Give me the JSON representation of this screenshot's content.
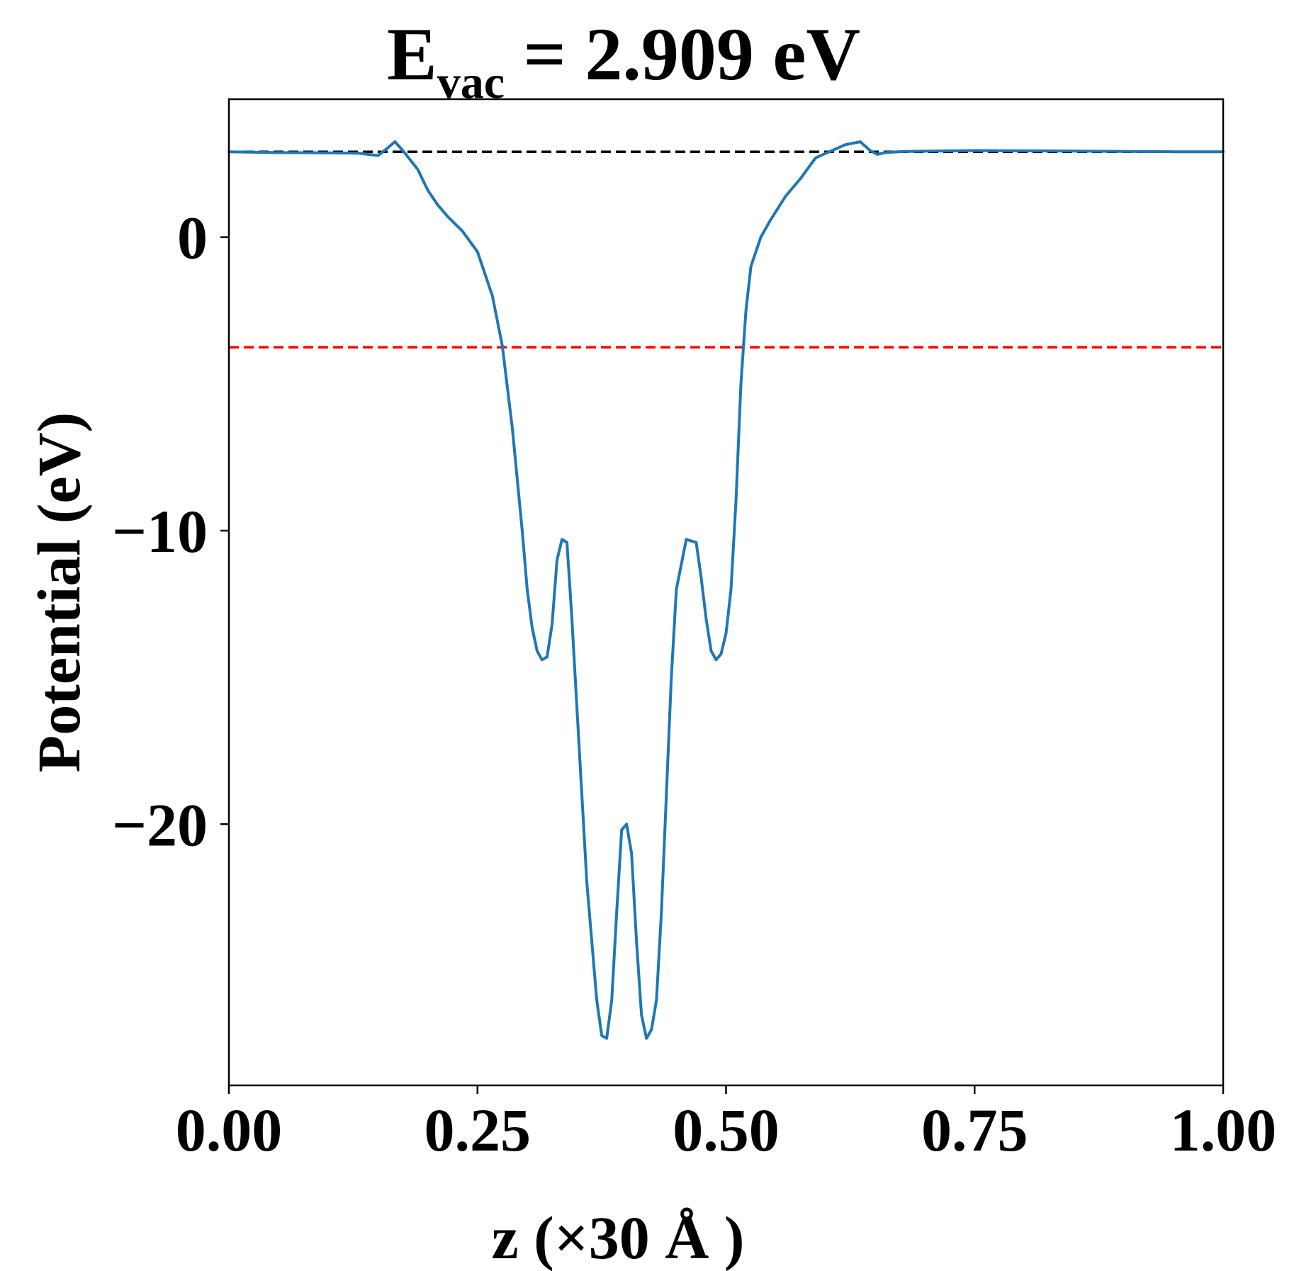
{
  "chart_data": {
    "type": "line",
    "title": {
      "main": "E",
      "subscript": "vac",
      "rest": " = 2.909 eV"
    },
    "xlabel": "z (×30 Å )",
    "ylabel": "Potential (eV)",
    "xlim": [
      0.0,
      1.0
    ],
    "ylim": [
      -28.9,
      4.7
    ],
    "xticks": [
      0.0,
      0.25,
      0.5,
      0.75,
      1.0
    ],
    "xtick_labels": [
      "0.00",
      "0.25",
      "0.50",
      "0.75",
      "1.00"
    ],
    "yticks": [
      0,
      -10,
      -20
    ],
    "ytick_labels": [
      "0",
      "−10",
      "−20"
    ],
    "grid": false,
    "reference_lines": [
      {
        "y": 2.909,
        "color": "#000000",
        "style": "dashed"
      },
      {
        "y": -3.75,
        "color": "#ff0000",
        "style": "dashed"
      }
    ],
    "series": [
      {
        "color": "#1f77b4",
        "x": [
          0.0,
          0.05,
          0.1,
          0.13,
          0.15,
          0.16,
          0.167,
          0.175,
          0.19,
          0.2,
          0.21,
          0.22,
          0.235,
          0.25,
          0.265,
          0.275,
          0.285,
          0.295,
          0.3,
          0.305,
          0.31,
          0.315,
          0.32,
          0.325,
          0.33,
          0.335,
          0.34,
          0.345,
          0.35,
          0.36,
          0.37,
          0.375,
          0.38,
          0.385,
          0.39,
          0.395,
          0.4,
          0.405,
          0.41,
          0.415,
          0.42,
          0.425,
          0.43,
          0.435,
          0.44,
          0.445,
          0.45,
          0.46,
          0.47,
          0.475,
          0.48,
          0.485,
          0.49,
          0.495,
          0.5,
          0.505,
          0.51,
          0.515,
          0.52,
          0.525,
          0.535,
          0.545,
          0.56,
          0.575,
          0.59,
          0.6,
          0.61,
          0.62,
          0.635,
          0.645,
          0.652,
          0.66,
          0.68,
          0.75,
          0.85,
          0.95,
          1.0
        ],
        "y": [
          2.91,
          2.88,
          2.87,
          2.86,
          2.78,
          3.05,
          3.25,
          2.95,
          2.3,
          1.6,
          1.1,
          0.7,
          0.2,
          -0.5,
          -2.0,
          -3.7,
          -6.5,
          -10.0,
          -12.0,
          -13.3,
          -14.1,
          -14.4,
          -14.3,
          -13.2,
          -11.0,
          -10.3,
          -10.4,
          -13.0,
          -16.0,
          -22.0,
          -26.0,
          -27.2,
          -27.3,
          -26.0,
          -23.0,
          -20.2,
          -20.0,
          -21.0,
          -24.0,
          -26.5,
          -27.3,
          -27.0,
          -26.0,
          -23.0,
          -19.0,
          -15.0,
          -12.0,
          -10.3,
          -10.4,
          -11.6,
          -13.0,
          -14.1,
          -14.4,
          -14.2,
          -13.5,
          -12.0,
          -9.0,
          -5.0,
          -2.5,
          -1.0,
          0.0,
          0.6,
          1.4,
          2.0,
          2.7,
          2.85,
          3.0,
          3.15,
          3.25,
          2.95,
          2.82,
          2.88,
          2.92,
          2.95,
          2.93,
          2.91,
          2.91
        ]
      }
    ]
  }
}
